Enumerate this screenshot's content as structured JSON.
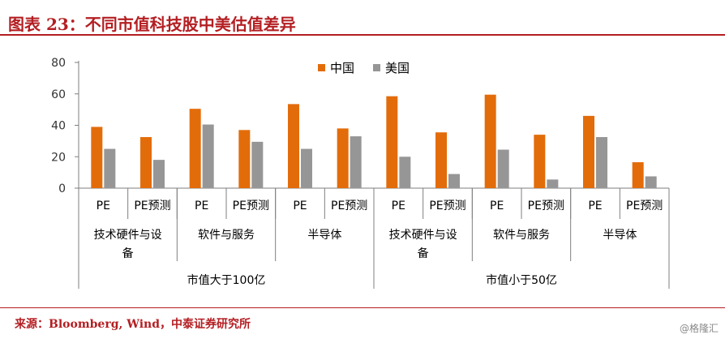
{
  "header": {
    "title": "图表 23：不同市值科技股中美估值差异"
  },
  "footer": {
    "source": "来源：Bloomberg, Wind，中泰证券研究所",
    "watermark": "@格隆汇"
  },
  "colors": {
    "china": "#e36c0a",
    "us": "#969696",
    "accent": "#b41e22",
    "axis": "#7f7f7f"
  },
  "chart_data": {
    "type": "bar",
    "ylim": [
      0,
      80
    ],
    "yticks": [
      0,
      20,
      40,
      60,
      80
    ],
    "legend_position": "top-center",
    "categories": [
      "PE",
      "PE预测",
      "PE",
      "PE预测",
      "PE",
      "PE预测",
      "PE",
      "PE预测",
      "PE",
      "PE预测",
      "PE",
      "PE预测"
    ],
    "sectors": [
      "技术硬件与设备",
      "软件与服务",
      "半导体",
      "技术硬件与设备",
      "软件与服务",
      "半导体"
    ],
    "groups": [
      "市值大于100亿",
      "市值小于50亿"
    ],
    "series": [
      {
        "name": "中国",
        "values": [
          39,
          32.5,
          50.5,
          37,
          53.5,
          38,
          58.5,
          35.5,
          59.5,
          34,
          46,
          16.5
        ]
      },
      {
        "name": "美国",
        "values": [
          25,
          18,
          40.5,
          29.5,
          25,
          33,
          20,
          9,
          24.5,
          5.5,
          32.5,
          7.5
        ]
      }
    ]
  }
}
